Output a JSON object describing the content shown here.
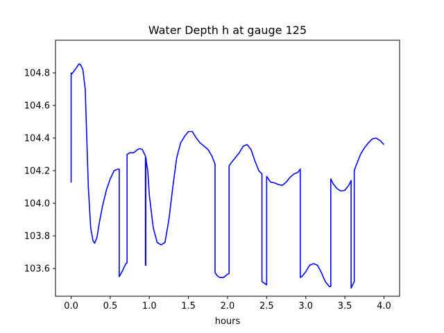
{
  "chart_data": {
    "type": "line",
    "title": "Water Depth h at gauge 125",
    "xlabel": "hours",
    "ylabel": "",
    "xlim": [
      -0.2,
      4.2
    ],
    "ylim": [
      103.43,
      105.0
    ],
    "xticks": [
      0.0,
      0.5,
      1.0,
      1.5,
      2.0,
      2.5,
      3.0,
      3.5,
      4.0
    ],
    "xtick_labels": [
      "0.0",
      "0.5",
      "1.0",
      "1.5",
      "2.0",
      "2.5",
      "3.0",
      "3.5",
      "4.0"
    ],
    "yticks": [
      103.6,
      103.8,
      104.0,
      104.2,
      104.4,
      104.6,
      104.8
    ],
    "ytick_labels": [
      "103.6",
      "103.8",
      "104.0",
      "104.2",
      "104.4",
      "104.6",
      "104.8"
    ],
    "grid": false,
    "legend": "none",
    "series": [
      {
        "color": "#0000ff",
        "x": [
          0.0,
          0.0,
          0.0,
          0.0,
          0.02,
          0.05,
          0.08,
          0.1,
          0.12,
          0.15,
          0.18,
          0.2,
          0.22,
          0.25,
          0.28,
          0.3,
          0.33,
          0.36,
          0.4,
          0.45,
          0.5,
          0.55,
          0.6,
          0.615,
          0.615,
          0.65,
          0.7,
          0.715,
          0.715,
          0.75,
          0.8,
          0.85,
          0.88,
          0.91,
          0.95,
          0.95,
          0.955,
          0.955,
          0.96,
          0.96,
          0.98,
          1.0,
          1.05,
          1.1,
          1.15,
          1.2,
          1.25,
          1.3,
          1.35,
          1.4,
          1.45,
          1.5,
          1.55,
          1.6,
          1.65,
          1.7,
          1.75,
          1.8,
          1.84,
          1.84,
          1.87,
          1.9,
          1.95,
          2.0,
          2.02,
          2.02,
          2.05,
          2.1,
          2.15,
          2.2,
          2.25,
          2.3,
          2.35,
          2.4,
          2.44,
          2.44,
          2.47,
          2.5,
          2.5,
          2.55,
          2.6,
          2.65,
          2.7,
          2.75,
          2.8,
          2.85,
          2.9,
          2.93,
          2.93,
          2.95,
          3.0,
          3.05,
          3.1,
          3.15,
          3.2,
          3.25,
          3.3,
          3.32,
          3.32,
          3.35,
          3.4,
          3.45,
          3.5,
          3.55,
          3.58,
          3.58,
          3.62,
          3.62,
          3.65,
          3.7,
          3.75,
          3.8,
          3.85,
          3.9,
          3.95,
          4.0
        ],
        "y": [
          104.38,
          104.13,
          104.8,
          104.79,
          104.8,
          104.82,
          104.84,
          104.855,
          104.85,
          104.82,
          104.7,
          104.4,
          104.1,
          103.85,
          103.77,
          103.755,
          103.79,
          103.88,
          103.98,
          104.08,
          104.15,
          104.2,
          104.21,
          104.21,
          103.55,
          103.58,
          103.63,
          103.635,
          104.3,
          104.31,
          104.31,
          104.33,
          104.335,
          104.33,
          104.29,
          103.62,
          103.62,
          104.28,
          104.27,
          104.26,
          104.2,
          104.05,
          103.85,
          103.76,
          103.745,
          103.76,
          103.9,
          104.1,
          104.28,
          104.37,
          104.41,
          104.44,
          104.44,
          104.4,
          104.37,
          104.35,
          104.33,
          104.29,
          104.24,
          103.575,
          103.555,
          103.545,
          103.545,
          103.565,
          103.57,
          104.23,
          104.25,
          104.28,
          104.31,
          104.35,
          104.36,
          104.33,
          104.26,
          104.2,
          104.18,
          103.52,
          103.51,
          103.5,
          104.165,
          104.13,
          104.125,
          104.115,
          104.11,
          104.13,
          104.16,
          104.18,
          104.19,
          104.21,
          103.545,
          103.55,
          103.58,
          103.62,
          103.63,
          103.62,
          103.575,
          103.52,
          103.49,
          103.49,
          104.15,
          104.12,
          104.09,
          104.075,
          104.08,
          104.11,
          104.14,
          103.48,
          103.52,
          104.2,
          104.24,
          104.3,
          104.34,
          104.37,
          104.395,
          104.4,
          104.385,
          104.36
        ]
      }
    ]
  }
}
